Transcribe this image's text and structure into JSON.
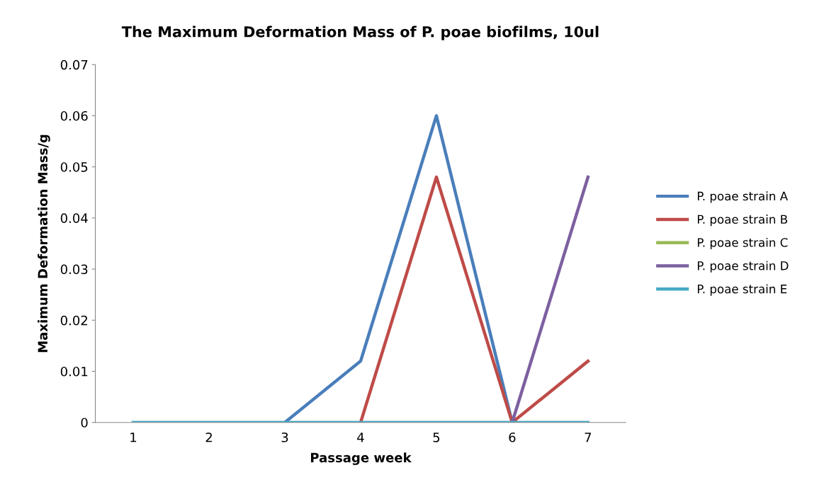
{
  "chart_data": {
    "type": "line",
    "title": "The Maximum Deformation Mass of P. poae biofilms, 10ul",
    "xlabel": "Passage week",
    "ylabel": "Maximum Deformation Mass/g",
    "categories": [
      "1",
      "2",
      "3",
      "4",
      "5",
      "6",
      "7"
    ],
    "series": [
      {
        "name": "P. poae strain A",
        "color": "#4a7ebb",
        "values": [
          null,
          null,
          0,
          0.012,
          0.06,
          0,
          null
        ]
      },
      {
        "name": "P. poae strain B",
        "color": "#be4b48",
        "values": [
          null,
          null,
          null,
          0,
          0.048,
          0,
          0.012
        ]
      },
      {
        "name": "P. poae strain C",
        "color": "#98b954",
        "values": [
          null,
          null,
          null,
          null,
          null,
          null,
          null
        ]
      },
      {
        "name": "P. poae strain D",
        "color": "#7d60a0",
        "values": [
          null,
          null,
          null,
          null,
          null,
          0,
          0.048
        ]
      },
      {
        "name": "P. poae strain E",
        "color": "#46aac5",
        "values": [
          0,
          0,
          0,
          0,
          0,
          0,
          0
        ]
      }
    ],
    "ylim": [
      0,
      0.07
    ],
    "yticks": [
      0,
      0.01,
      0.02,
      0.03,
      0.04,
      0.05,
      0.06,
      0.07
    ],
    "grid": false,
    "legend": "right",
    "marker": "none",
    "line_style": "solid"
  }
}
